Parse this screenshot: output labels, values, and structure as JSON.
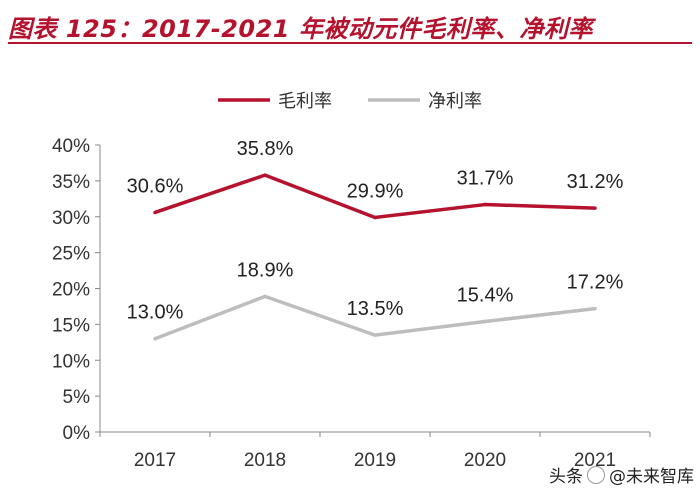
{
  "title": "图表 125：2017-2021 年被动元件毛利率、净利率",
  "watermark": {
    "prefix": "头条",
    "handle": "@未来智库"
  },
  "chart_data": {
    "type": "line",
    "categories": [
      "2017",
      "2018",
      "2019",
      "2020",
      "2021"
    ],
    "series": [
      {
        "name": "毛利率",
        "values": [
          30.6,
          35.8,
          29.9,
          31.7,
          31.2
        ],
        "labels": [
          "30.6%",
          "35.8%",
          "29.9%",
          "31.7%",
          "31.2%"
        ],
        "color": "#b5122e"
      },
      {
        "name": "净利率",
        "values": [
          13.0,
          18.9,
          13.5,
          15.4,
          17.2
        ],
        "labels": [
          "13.0%",
          "18.9%",
          "13.5%",
          "15.4%",
          "17.2%"
        ],
        "color": "#bdbdbd"
      }
    ],
    "yticks": [
      "0%",
      "5%",
      "10%",
      "15%",
      "20%",
      "25%",
      "30%",
      "35%",
      "40%"
    ],
    "ylim": [
      0,
      40
    ],
    "legend_position": "top-center",
    "grid": false
  }
}
